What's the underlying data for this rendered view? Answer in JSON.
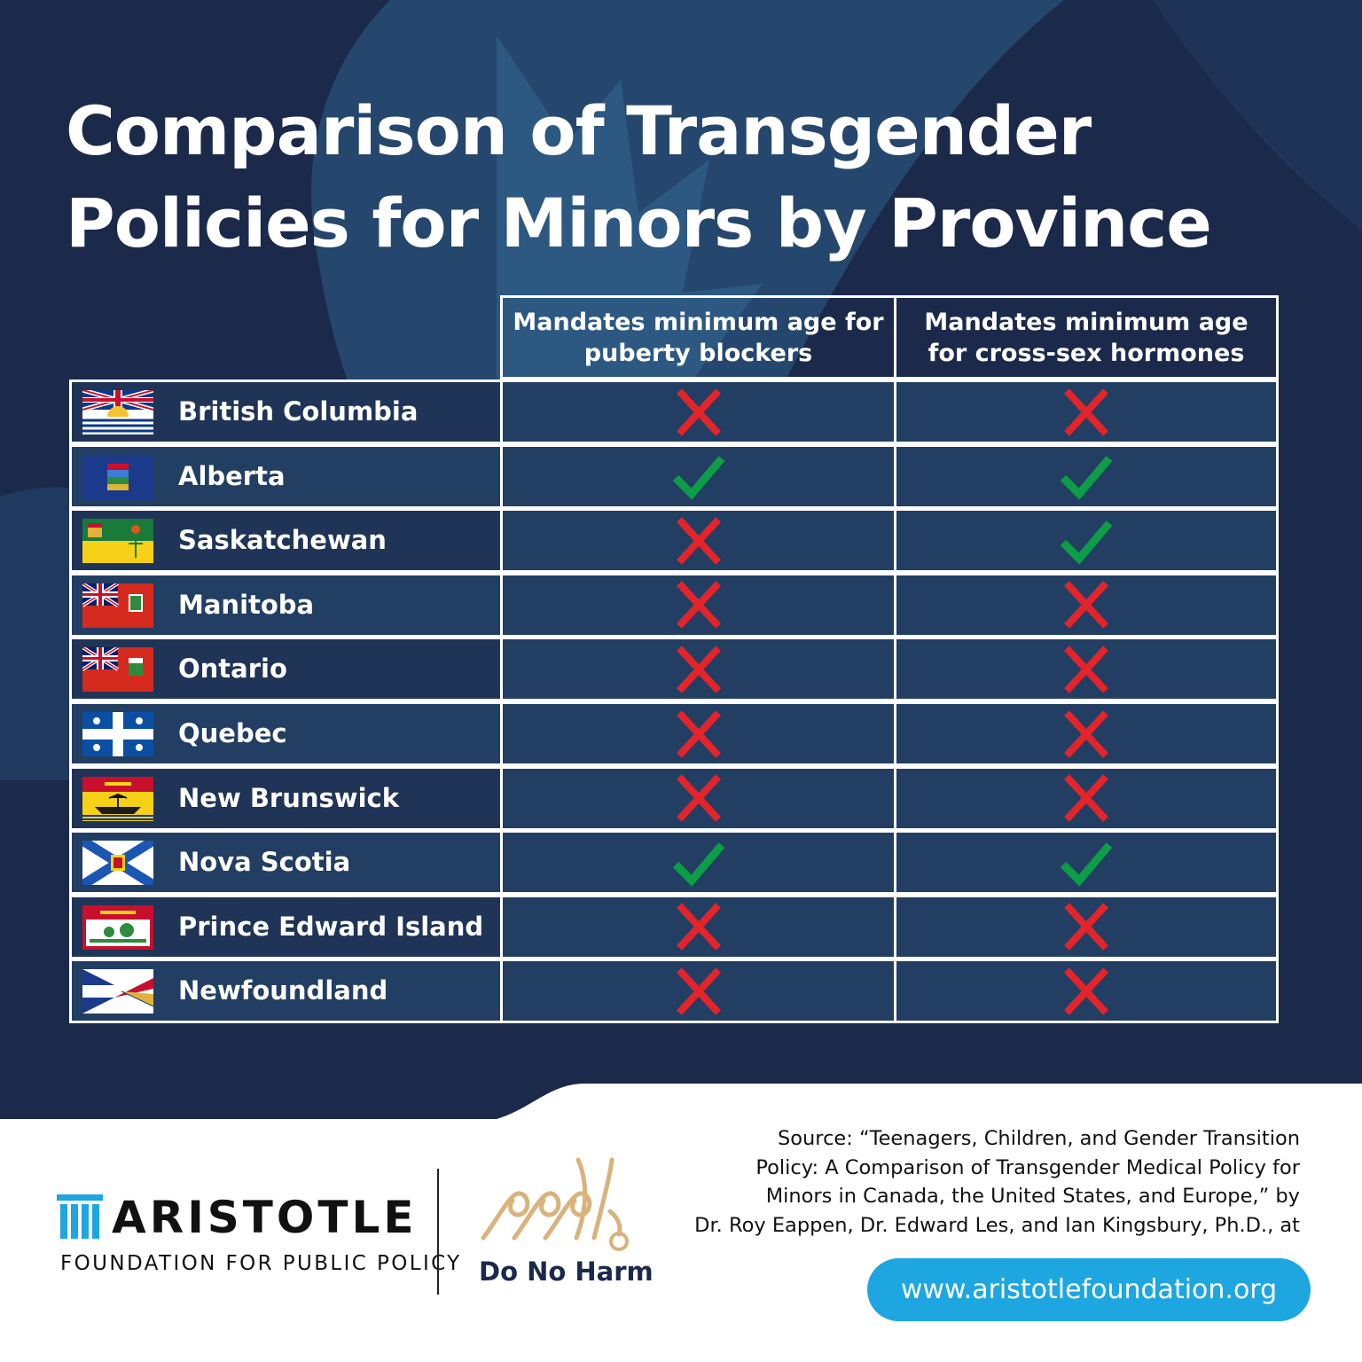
{
  "title_lines": [
    "Comparison of Transgender",
    "Policies for Minors by Province"
  ],
  "colors": {
    "background": "#1b2a4a",
    "row_dark": "#1f3456",
    "row_light": "#223e62",
    "border": "#ffffff",
    "yes": "#0c9d46",
    "no": "#e3242b",
    "url_pill": "#1ea6e0"
  },
  "chart_data": {
    "type": "table",
    "title": "Comparison of Transgender Policies for Minors by Province",
    "columns": [
      "Mandates minimum age for puberty blockers",
      "Mandates minimum age for cross-sex hormones"
    ],
    "rows": [
      {
        "province": "British Columbia",
        "flag": "british-columbia-flag",
        "values": [
          false,
          false
        ]
      },
      {
        "province": "Alberta",
        "flag": "alberta-flag",
        "values": [
          true,
          true
        ]
      },
      {
        "province": "Saskatchewan",
        "flag": "saskatchewan-flag",
        "values": [
          false,
          true
        ]
      },
      {
        "province": "Manitoba",
        "flag": "manitoba-flag",
        "values": [
          false,
          false
        ]
      },
      {
        "province": "Ontario",
        "flag": "ontario-flag",
        "values": [
          false,
          false
        ]
      },
      {
        "province": "Quebec",
        "flag": "quebec-flag",
        "values": [
          false,
          false
        ]
      },
      {
        "province": "New Brunswick",
        "flag": "new-brunswick-flag",
        "values": [
          false,
          false
        ]
      },
      {
        "province": "Nova Scotia",
        "flag": "nova-scotia-flag",
        "values": [
          true,
          true
        ]
      },
      {
        "province": "Prince Edward Island",
        "flag": "prince-edward-island-flag",
        "values": [
          false,
          false
        ]
      },
      {
        "province": "Newfoundland",
        "flag": "newfoundland-flag",
        "values": [
          false,
          false
        ]
      }
    ],
    "legend": {
      "yes": "check-icon",
      "no": "cross-icon"
    }
  },
  "footer": {
    "source_lines": [
      "Source: “Teenagers, Children, and Gender Transition",
      "Policy: A Comparison of Transgender Medical Policy for",
      "Minors in Canada, the United States, and Europe,” by",
      "Dr. Roy Eappen, Dr. Edward Les, and Ian Kingsbury, Ph.D., at"
    ],
    "url": "www.aristotlefoundation.org",
    "aristotle_name": "ARISTOTLE",
    "aristotle_sub": "FOUNDATION FOR PUBLIC POLICY",
    "dnh_name": "Do No Harm"
  }
}
